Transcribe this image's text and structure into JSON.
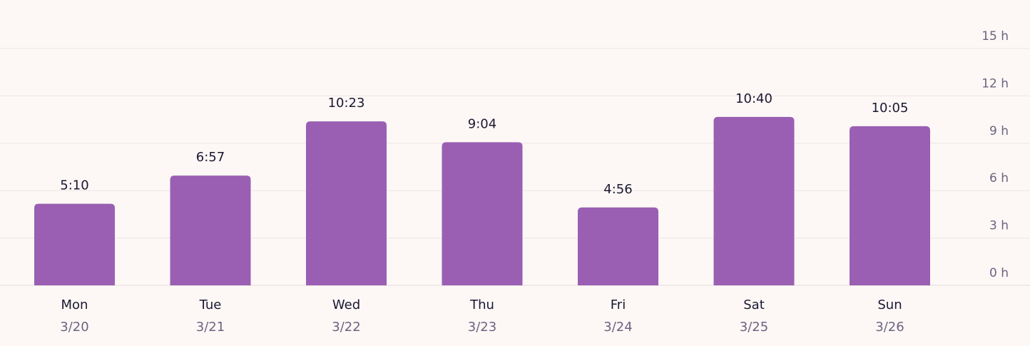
{
  "chart_data": {
    "type": "bar",
    "categories": [
      "Mon",
      "Tue",
      "Wed",
      "Thu",
      "Fri",
      "Sat",
      "Sun"
    ],
    "dates": [
      "3/20",
      "3/21",
      "3/22",
      "3/23",
      "3/24",
      "3/25",
      "3/26"
    ],
    "values_hours": [
      5.1667,
      6.95,
      10.3833,
      9.0667,
      4.9333,
      10.6667,
      10.0833
    ],
    "value_labels": [
      "5:10",
      "6:57",
      "10:23",
      "9:04",
      "4:56",
      "10:40",
      "10:05"
    ],
    "y_ticks": [
      0,
      3,
      6,
      9,
      12,
      15
    ],
    "y_tick_labels": [
      "0 h",
      "3 h",
      "6 h",
      "9 h",
      "12 h",
      "15 h"
    ],
    "ylim": [
      0,
      15
    ],
    "y_axis_position": "right",
    "grid": true,
    "legend": "none",
    "colors": {
      "bar": "#9a5fb3",
      "background": "#fdf8f6",
      "gridline": "#ece6e4",
      "value_text": "#1b1730",
      "secondary_text": "#6b6480"
    }
  }
}
